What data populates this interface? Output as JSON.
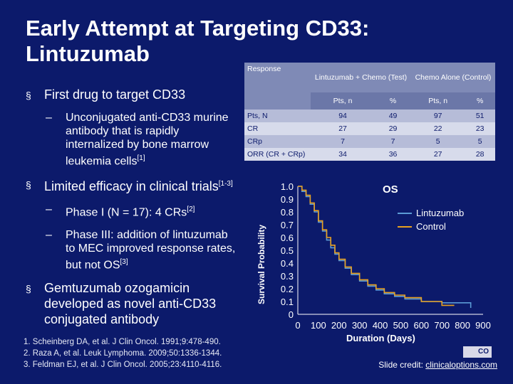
{
  "title": "Early Attempt at Targeting CD33: Lintuzumab",
  "bullets": {
    "b1": "First drug to target CD33",
    "b1_sub": "Unconjugated anti-CD33 murine antibody that is rapidly internalized by bone marrow leukemia cells",
    "b1_sub_ref": "[1]",
    "b2": "Limited efficacy in clinical trials",
    "b2_ref": "[1-3]",
    "b2_sub1": "Phase I (N = 17): 4 CRs",
    "b2_sub1_ref": "[2]",
    "b2_sub2": "Phase III: addition of lintuzumab to MEC improved response rates, but not OS",
    "b2_sub2_ref": "[3]",
    "b3": "Gemtuzumab ozogamicin developed as novel anti-CD33 conjugated antibody"
  },
  "table": {
    "col_response": "Response",
    "col_test": "Lintuzumab + Chemo (Test)",
    "col_control": "Chemo Alone (Control)",
    "sub_pts": "Pts, n",
    "sub_pct": "%",
    "rows": [
      {
        "label": "Pts, N",
        "a": "94",
        "b": "49",
        "c": "97",
        "d": "51"
      },
      {
        "label": "CR",
        "a": "27",
        "b": "29",
        "c": "22",
        "d": "23"
      },
      {
        "label": "CRp",
        "a": "7",
        "b": "7",
        "c": "5",
        "d": "5"
      },
      {
        "label": "ORR (CR + CRp)",
        "a": "34",
        "b": "36",
        "c": "27",
        "d": "28"
      }
    ]
  },
  "chart_data": {
    "type": "line",
    "title": "OS",
    "xlabel": "Duration (Days)",
    "ylabel": "Survival Probability",
    "xlim": [
      0,
      900
    ],
    "ylim": [
      0,
      1.0
    ],
    "x_ticks": [
      "0",
      "100",
      "200",
      "300",
      "400",
      "500",
      "600",
      "700",
      "800",
      "900"
    ],
    "y_ticks": [
      "0",
      "0.1",
      "0.2",
      "0.3",
      "0.4",
      "0.5",
      "0.6",
      "0.7",
      "0.8",
      "0.9",
      "1.0"
    ],
    "legend_position": "top-right",
    "series": [
      {
        "name": "Lintuzumab",
        "color": "#5b9bd5",
        "x": [
          0,
          20,
          40,
          60,
          80,
          100,
          120,
          140,
          160,
          180,
          200,
          230,
          260,
          300,
          340,
          380,
          420,
          470,
          520,
          600,
          700,
          760,
          840
        ],
        "y": [
          1.0,
          0.96,
          0.92,
          0.86,
          0.8,
          0.72,
          0.65,
          0.58,
          0.52,
          0.47,
          0.42,
          0.36,
          0.31,
          0.26,
          0.22,
          0.19,
          0.16,
          0.14,
          0.12,
          0.1,
          0.09,
          0.09,
          0.05
        ]
      },
      {
        "name": "Control",
        "color": "#e8a020",
        "x": [
          0,
          20,
          40,
          60,
          80,
          100,
          120,
          140,
          160,
          180,
          200,
          230,
          260,
          300,
          340,
          380,
          420,
          470,
          520,
          600,
          700,
          760
        ],
        "y": [
          1.0,
          0.97,
          0.93,
          0.87,
          0.81,
          0.73,
          0.66,
          0.6,
          0.54,
          0.48,
          0.43,
          0.37,
          0.32,
          0.27,
          0.23,
          0.2,
          0.17,
          0.15,
          0.13,
          0.1,
          0.07,
          0.07
        ]
      }
    ]
  },
  "references": [
    "1. Scheinberg DA, et al. J Clin Oncol. 1991;9:478-490.",
    "2. Raza A, et al. Leuk Lymphoma. 2009;50:1336-1344.",
    "3. Feldman EJ, et al. J Clin Oncol. 2005;23:4110-4116."
  ],
  "credit": {
    "prefix": "Slide credit: ",
    "link": "clinicaloptions.com"
  },
  "logo_text": "CO"
}
